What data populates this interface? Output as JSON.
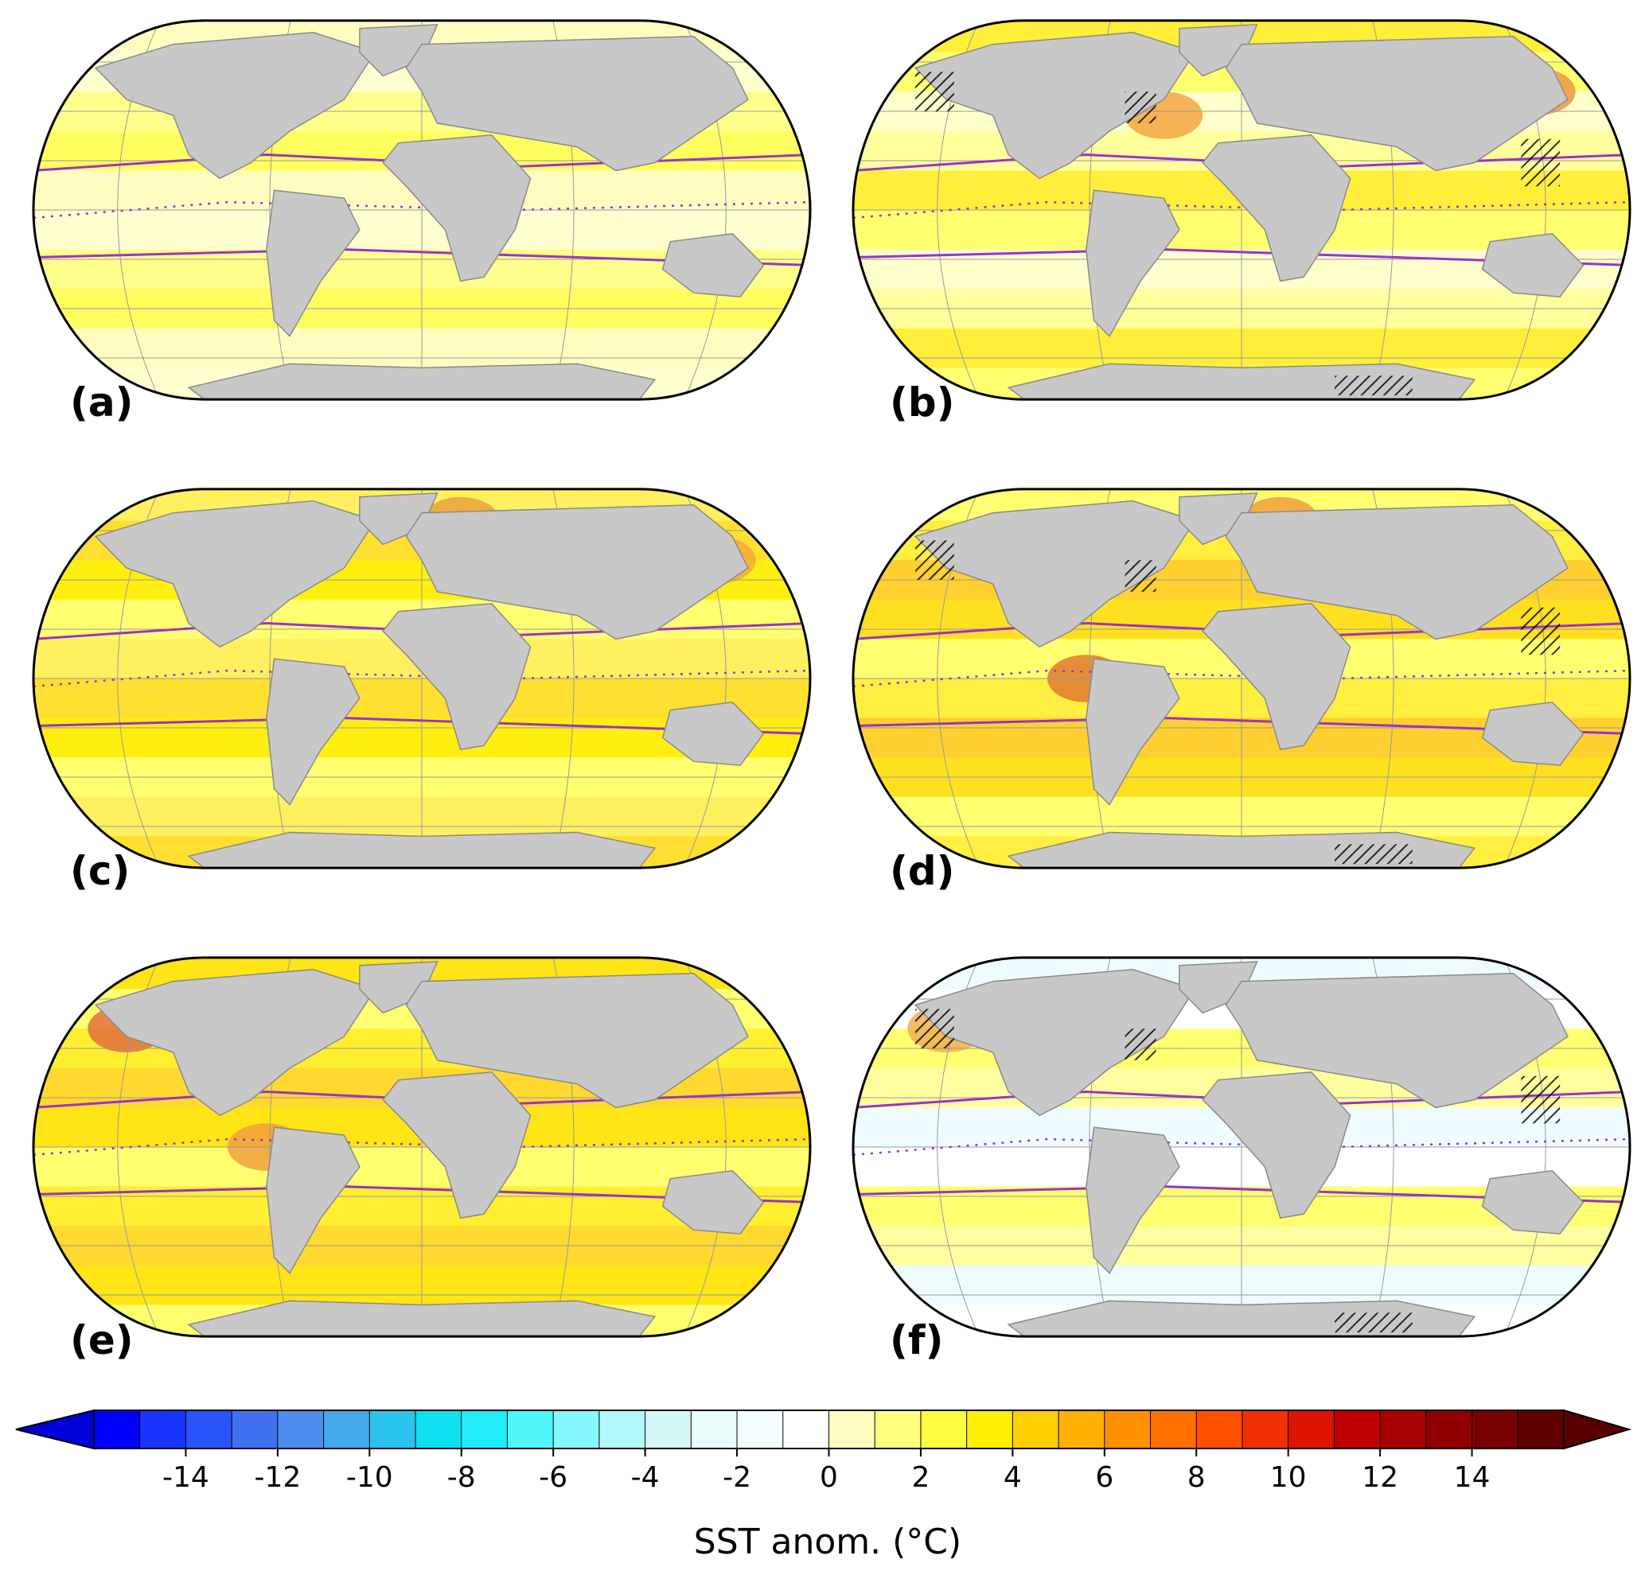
{
  "figure": {
    "panels": [
      {
        "id": "a",
        "label": "(a)",
        "palette": [
          "#fffcc0",
          "#ffff60",
          "#ffff8c",
          "#ffffd0"
        ],
        "hatching": false,
        "warm_blobs": []
      },
      {
        "id": "b",
        "label": "(b)",
        "palette": [
          "#ffff70",
          "#ffef3a",
          "#ffff9c",
          "#ffffcc"
        ],
        "hatching": true,
        "warm_blobs": [
          "#f5a640",
          "#ee9640"
        ]
      },
      {
        "id": "c",
        "label": "(c)",
        "palette": [
          "#ffef10",
          "#ffe030",
          "#fff060",
          "#ffff70"
        ],
        "hatching": false,
        "warm_blobs": [
          "#f2a93a",
          "#e9a23c"
        ]
      },
      {
        "id": "d",
        "label": "(d)",
        "palette": [
          "#ffe020",
          "#ffd030",
          "#ffef40",
          "#ffff70"
        ],
        "hatching": true,
        "warm_blobs": [
          "#f0a03c",
          "#e07a30"
        ]
      },
      {
        "id": "e",
        "label": "(e)",
        "palette": [
          "#ffe515",
          "#ffd830",
          "#ffef30",
          "#ffff70"
        ],
        "hatching": false,
        "warm_blobs": [
          "#f0a040",
          "#e2703c"
        ]
      },
      {
        "id": "f",
        "label": "(f)",
        "palette": [
          "#ffffff",
          "#eefcff",
          "#ffffa0",
          "#ffff70"
        ],
        "hatching": true,
        "warm_blobs": [
          "#f0b050"
        ]
      }
    ],
    "land_color": "#c8c8c8",
    "contour_color": "#9933cc"
  },
  "colorbar": {
    "title": "SST anom. (°C)",
    "ticks": [
      "-14",
      "-12",
      "-10",
      "-8",
      "-6",
      "-4",
      "-2",
      "0",
      "2",
      "4",
      "6",
      "8",
      "10",
      "12",
      "14"
    ],
    "min": -16,
    "max": 16,
    "step": 1,
    "extend": "both",
    "colors": [
      "#0000ff",
      "#1a34ff",
      "#2a54f8",
      "#3f70f0",
      "#4e8cee",
      "#44a8ec",
      "#2cc4ee",
      "#0ee0f0",
      "#20ecfa",
      "#50f6fc",
      "#84f8fc",
      "#b0f8fa",
      "#d4f8f8",
      "#e8fcfc",
      "#f4fefe",
      "#ffffff",
      "#fffcc0",
      "#ffff80",
      "#ffff40",
      "#fff000",
      "#ffd000",
      "#ffb000",
      "#ff9000",
      "#ff7000",
      "#ff5000",
      "#f03000",
      "#dc1400",
      "#c00000",
      "#a80000",
      "#900000",
      "#780000",
      "#600000"
    ],
    "under_color": "#0000d8",
    "over_color": "#5a0000"
  }
}
